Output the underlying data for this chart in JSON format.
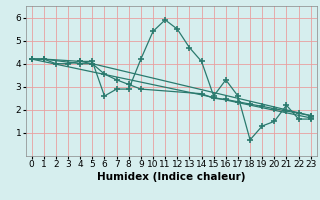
{
  "series": [
    {
      "x": [
        0,
        1,
        2,
        3,
        4,
        5,
        6,
        7,
        8,
        9,
        10,
        11,
        12,
        13,
        14,
        15,
        16,
        17,
        18,
        19,
        20,
        21,
        22,
        23
      ],
      "y": [
        4.2,
        4.2,
        4.0,
        4.0,
        4.1,
        4.1,
        2.6,
        2.9,
        2.9,
        4.2,
        5.4,
        5.9,
        5.5,
        4.7,
        4.1,
        2.6,
        3.3,
        2.6,
        0.7,
        1.3,
        1.5,
        2.2,
        1.6,
        1.6
      ]
    },
    {
      "x": [
        0,
        1,
        4,
        5,
        6,
        7,
        8,
        9,
        14,
        15,
        16,
        17,
        18,
        19,
        20,
        21,
        22,
        23
      ],
      "y": [
        4.2,
        4.2,
        4.0,
        4.0,
        3.55,
        3.3,
        3.1,
        2.9,
        2.7,
        2.5,
        2.45,
        2.35,
        2.25,
        2.15,
        2.05,
        1.95,
        1.85,
        1.75
      ]
    },
    {
      "x": [
        0,
        23
      ],
      "y": [
        4.2,
        1.65
      ]
    },
    {
      "x": [
        0,
        1,
        4,
        5,
        23
      ],
      "y": [
        4.2,
        4.2,
        4.1,
        4.0,
        1.75
      ]
    }
  ],
  "color": "#2a7a6e",
  "marker": "+",
  "markersize": 4,
  "linewidth": 0.9,
  "markeredgewidth": 1.2,
  "xlim": [
    -0.5,
    23.5
  ],
  "ylim": [
    0,
    6.5
  ],
  "yticks": [
    1,
    2,
    3,
    4,
    5,
    6
  ],
  "xticks": [
    0,
    1,
    2,
    3,
    4,
    5,
    6,
    7,
    8,
    9,
    10,
    11,
    12,
    13,
    14,
    15,
    16,
    17,
    18,
    19,
    20,
    21,
    22,
    23
  ],
  "xlabel": "Humidex (Indice chaleur)",
  "bg_color": "#d6eeee",
  "grid_color": "#e8a0a0",
  "tick_fontsize": 6.5,
  "xlabel_fontsize": 7.5
}
